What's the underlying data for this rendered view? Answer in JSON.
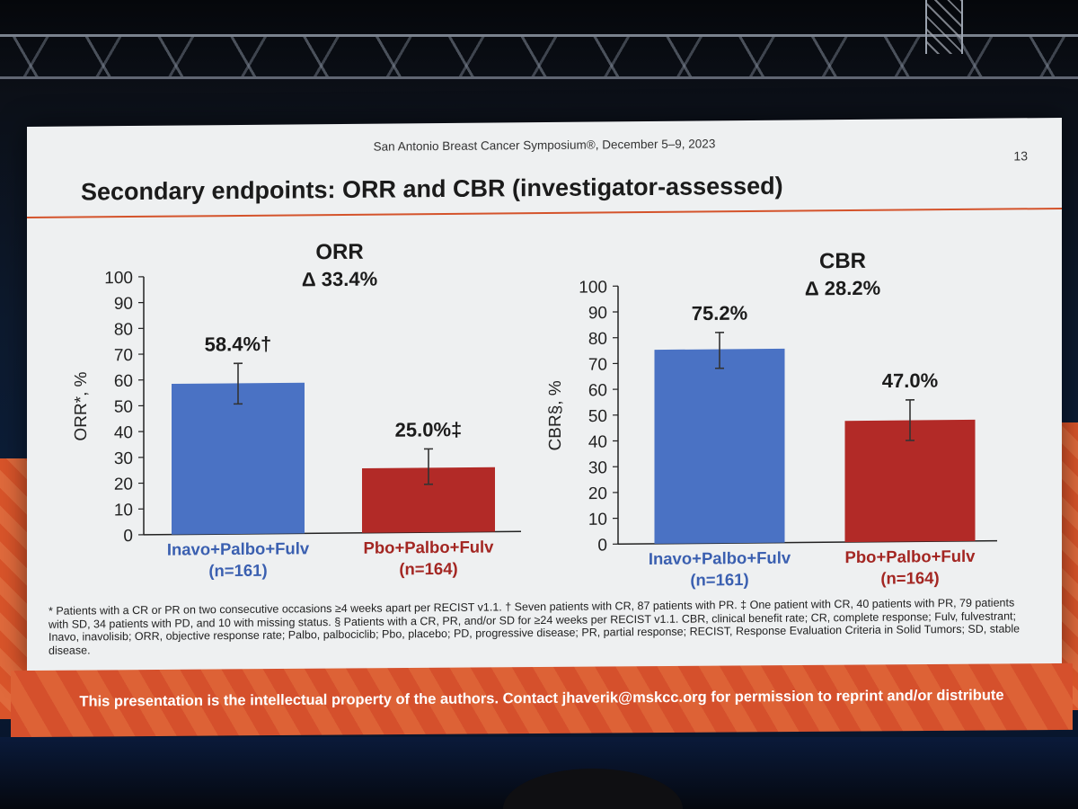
{
  "conference": "San Antonio Breast Cancer Symposium®, December 5–9, 2023",
  "page_number": "13",
  "slide_title": "Secondary endpoints: ORR and CBR (investigator-assessed)",
  "colors": {
    "inavo": "#4a72c4",
    "pbo": "#b22a27",
    "inavo_label": "#3a5fb0",
    "pbo_label": "#a32622",
    "accent": "#d4532b"
  },
  "chart_data": [
    {
      "type": "bar",
      "title": "ORR",
      "subtitle": "Δ 33.4%",
      "ylabel": "ORR*, %",
      "ylim": [
        0,
        100
      ],
      "yticks": [
        "0",
        "10",
        "20",
        "30",
        "40",
        "50",
        "60",
        "70",
        "80",
        "90",
        "100"
      ],
      "categories": [
        "Inavo+Palbo+Fulv",
        "Pbo+Palbo+Fulv"
      ],
      "category_n": [
        "(n=161)",
        "(n=164)"
      ],
      "values": [
        58.4,
        25.0
      ],
      "value_labels": [
        "58.4%†",
        "25.0%‡"
      ],
      "error_low": [
        50.4,
        18.6
      ],
      "error_high": [
        66.1,
        32.3
      ]
    },
    {
      "type": "bar",
      "title": "CBR",
      "subtitle": "Δ 28.2%",
      "ylabel": "CBR§, %",
      "ylim": [
        0,
        100
      ],
      "yticks": [
        "0",
        "10",
        "20",
        "30",
        "40",
        "50",
        "60",
        "70",
        "80",
        "90",
        "100"
      ],
      "categories": [
        "Inavo+Palbo+Fulv",
        "Pbo+Palbo+Fulv"
      ],
      "category_n": [
        "(n=161)",
        "(n=164)"
      ],
      "values": [
        75.2,
        47.0
      ],
      "value_labels": [
        "75.2%",
        "47.0%"
      ],
      "error_low": [
        67.8,
        39.2
      ],
      "error_high": [
        81.7,
        54.9
      ]
    }
  ],
  "footnote": "* Patients with a CR or PR on two consecutive occasions ≥4 weeks apart per RECIST v1.1. † Seven patients with CR, 87 patients with PR. ‡ One patient with CR, 40 patients with PR, 79 patients with SD, 34 patients with PD, and 10 with missing status. § Patients with a CR, PR, and/or SD for ≥24 weeks per RECIST v1.1. CBR, clinical benefit rate; CR, complete response; Fulv, fulvestrant; Inavo, inavolisib; ORR, objective response rate; Palbo, palbociclib; Pbo, placebo; PD, progressive disease; PR, partial response; RECIST, Response Evaluation Criteria in Solid Tumors; SD, stable disease.",
  "footer": "This presentation is the intellectual property of the authors. Contact jhaverik@mskcc.org for permission to reprint and/or distribute"
}
